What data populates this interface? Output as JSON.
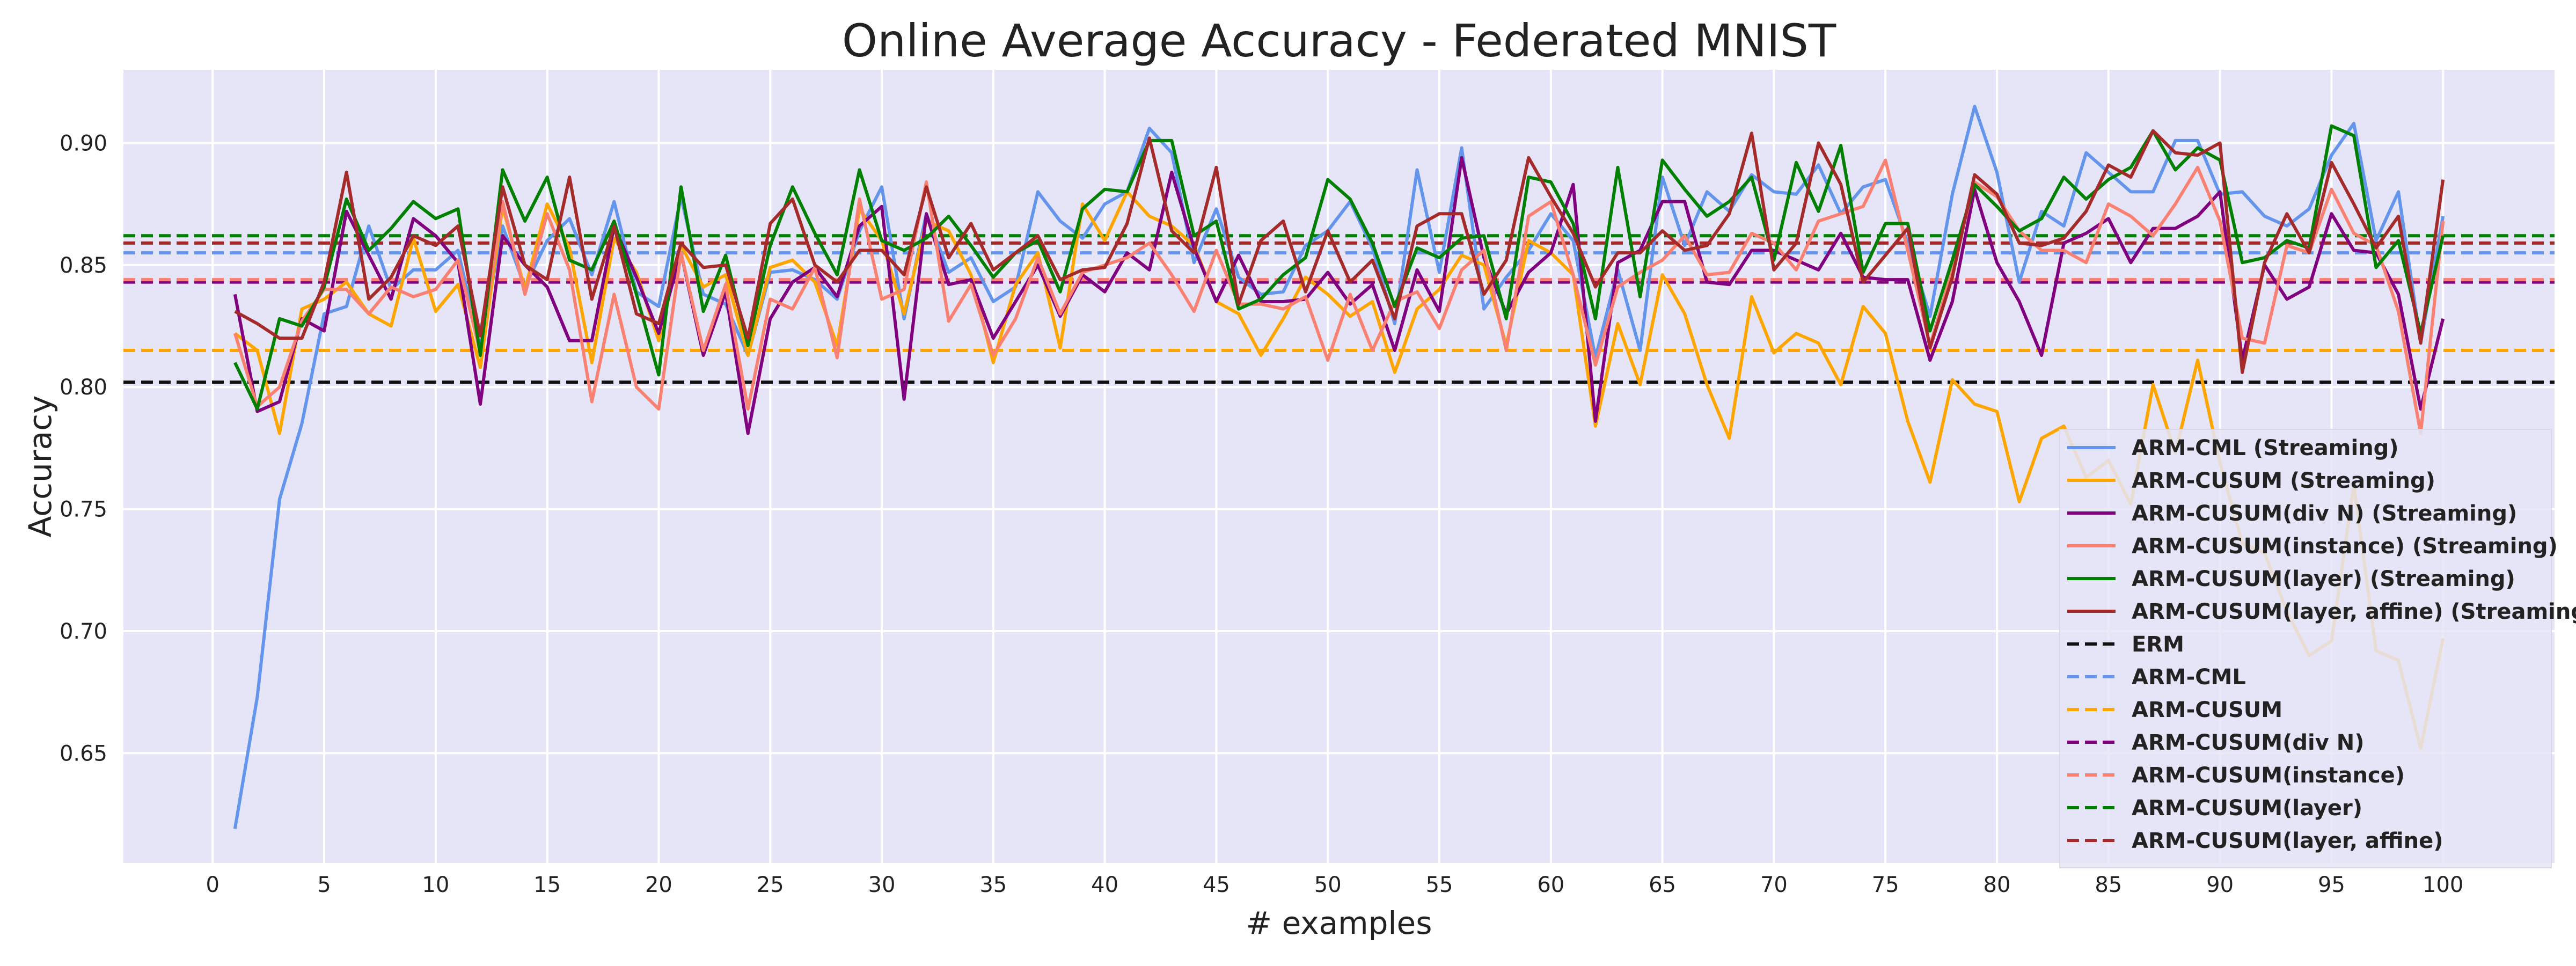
{
  "chart_data": {
    "type": "line",
    "title": "Online Average Accuracy - Federated MNIST",
    "xlabel": "# examples",
    "ylabel": "Accuracy",
    "xlim": [
      -4,
      105
    ],
    "ylim": [
      0.605,
      0.93
    ],
    "xticks": [
      0,
      5,
      10,
      15,
      20,
      25,
      30,
      35,
      40,
      45,
      50,
      55,
      60,
      65,
      70,
      75,
      80,
      85,
      90,
      95,
      100
    ],
    "yticks": [
      0.65,
      0.7,
      0.75,
      0.8,
      0.85,
      0.9
    ],
    "ytick_labels": [
      "0.65",
      "0.70",
      "0.75",
      "0.80",
      "0.85",
      "0.90"
    ],
    "grid": true,
    "plot_background": "#e5e5f7",
    "legend_position": "lower right",
    "x": [
      1,
      2,
      3,
      4,
      5,
      6,
      7,
      8,
      9,
      10,
      11,
      12,
      13,
      14,
      15,
      16,
      17,
      18,
      19,
      20,
      21,
      22,
      23,
      24,
      25,
      26,
      27,
      28,
      29,
      30,
      31,
      32,
      33,
      34,
      35,
      36,
      37,
      38,
      39,
      40,
      41,
      42,
      43,
      44,
      45,
      46,
      47,
      48,
      49,
      50,
      51,
      52,
      53,
      54,
      55,
      56,
      57,
      58,
      59,
      60,
      61,
      62,
      63,
      64,
      65,
      66,
      67,
      68,
      69,
      70,
      71,
      72,
      73,
      74,
      75,
      76,
      77,
      78,
      79,
      80,
      81,
      82,
      83,
      84,
      85,
      86,
      87,
      88,
      89,
      90,
      91,
      92,
      93,
      94,
      95,
      96,
      97,
      98,
      99,
      100
    ],
    "series": [
      {
        "name": "ARM-CML (Streaming)",
        "color": "#6495ED",
        "style": "solid",
        "values": [
          0.619,
          0.673,
          0.754,
          0.785,
          0.83,
          0.833,
          0.866,
          0.84,
          0.848,
          0.848,
          0.856,
          0.816,
          0.866,
          0.841,
          0.86,
          0.869,
          0.846,
          0.876,
          0.839,
          0.833,
          0.878,
          0.838,
          0.834,
          0.813,
          0.847,
          0.848,
          0.844,
          0.836,
          0.864,
          0.882,
          0.828,
          0.871,
          0.847,
          0.853,
          0.835,
          0.841,
          0.88,
          0.868,
          0.861,
          0.875,
          0.88,
          0.906,
          0.896,
          0.851,
          0.873,
          0.845,
          0.838,
          0.839,
          0.858,
          0.864,
          0.876,
          0.857,
          0.826,
          0.889,
          0.847,
          0.898,
          0.832,
          0.845,
          0.856,
          0.871,
          0.86,
          0.812,
          0.848,
          0.815,
          0.886,
          0.858,
          0.88,
          0.872,
          0.887,
          0.88,
          0.879,
          0.891,
          0.871,
          0.882,
          0.885,
          0.859,
          0.829,
          0.879,
          0.915,
          0.888,
          0.843,
          0.872,
          0.866,
          0.896,
          0.888,
          0.88,
          0.88,
          0.901,
          0.901,
          0.879,
          0.88,
          0.87,
          0.866,
          0.873,
          0.895,
          0.908,
          0.86,
          0.88,
          0.818,
          0.87
        ]
      },
      {
        "name": "ARM-CUSUM (Streaming)",
        "color": "#FFA500",
        "style": "solid",
        "values": [
          0.822,
          0.815,
          0.781,
          0.832,
          0.836,
          0.843,
          0.83,
          0.825,
          0.861,
          0.831,
          0.842,
          0.808,
          0.874,
          0.84,
          0.875,
          0.857,
          0.81,
          0.861,
          0.847,
          0.819,
          0.858,
          0.841,
          0.846,
          0.813,
          0.849,
          0.852,
          0.843,
          0.817,
          0.873,
          0.86,
          0.83,
          0.868,
          0.864,
          0.846,
          0.81,
          0.842,
          0.855,
          0.816,
          0.875,
          0.86,
          0.88,
          0.87,
          0.866,
          0.858,
          0.835,
          0.83,
          0.813,
          0.828,
          0.845,
          0.838,
          0.829,
          0.835,
          0.806,
          0.832,
          0.84,
          0.854,
          0.85,
          0.817,
          0.86,
          0.855,
          0.846,
          0.784,
          0.826,
          0.801,
          0.846,
          0.83,
          0.801,
          0.779,
          0.837,
          0.814,
          0.822,
          0.818,
          0.801,
          0.833,
          0.822,
          0.786,
          0.761,
          0.803,
          0.793,
          0.79,
          0.753,
          0.779,
          0.784,
          0.763,
          0.77,
          0.752,
          0.801,
          0.773,
          0.811,
          0.769,
          0.736,
          0.732,
          0.708,
          0.69,
          0.696,
          0.76,
          0.692,
          0.688,
          0.652,
          0.697
        ]
      },
      {
        "name": "ARM-CUSUM(div N) (Streaming)",
        "color": "#800080",
        "style": "solid",
        "values": [
          0.838,
          0.79,
          0.794,
          0.828,
          0.823,
          0.872,
          0.854,
          0.836,
          0.869,
          0.862,
          0.851,
          0.793,
          0.862,
          0.85,
          0.841,
          0.819,
          0.819,
          0.866,
          0.845,
          0.822,
          0.855,
          0.813,
          0.839,
          0.781,
          0.828,
          0.843,
          0.849,
          0.837,
          0.866,
          0.874,
          0.795,
          0.871,
          0.842,
          0.844,
          0.82,
          0.835,
          0.85,
          0.829,
          0.846,
          0.839,
          0.855,
          0.848,
          0.888,
          0.857,
          0.835,
          0.854,
          0.835,
          0.835,
          0.836,
          0.847,
          0.834,
          0.842,
          0.815,
          0.848,
          0.831,
          0.894,
          0.853,
          0.83,
          0.847,
          0.855,
          0.883,
          0.786,
          0.851,
          0.856,
          0.876,
          0.876,
          0.843,
          0.842,
          0.856,
          0.856,
          0.852,
          0.848,
          0.863,
          0.845,
          0.844,
          0.844,
          0.811,
          0.835,
          0.881,
          0.851,
          0.835,
          0.813,
          0.859,
          0.863,
          0.869,
          0.851,
          0.865,
          0.865,
          0.87,
          0.88,
          0.811,
          0.85,
          0.836,
          0.841,
          0.871,
          0.856,
          0.855,
          0.838,
          0.791,
          0.828
        ]
      },
      {
        "name": "ARM-CUSUM(instance) (Streaming)",
        "color": "#FA8072",
        "style": "solid",
        "values": [
          0.822,
          0.792,
          0.8,
          0.827,
          0.84,
          0.84,
          0.83,
          0.841,
          0.837,
          0.84,
          0.852,
          0.814,
          0.876,
          0.838,
          0.871,
          0.848,
          0.794,
          0.838,
          0.8,
          0.791,
          0.855,
          0.815,
          0.842,
          0.791,
          0.836,
          0.832,
          0.849,
          0.812,
          0.877,
          0.836,
          0.84,
          0.884,
          0.827,
          0.842,
          0.813,
          0.828,
          0.853,
          0.83,
          0.847,
          0.85,
          0.853,
          0.859,
          0.846,
          0.831,
          0.856,
          0.834,
          0.834,
          0.832,
          0.837,
          0.811,
          0.838,
          0.815,
          0.835,
          0.839,
          0.824,
          0.848,
          0.856,
          0.815,
          0.87,
          0.876,
          0.846,
          0.809,
          0.841,
          0.847,
          0.852,
          0.862,
          0.846,
          0.847,
          0.863,
          0.859,
          0.848,
          0.868,
          0.871,
          0.874,
          0.893,
          0.856,
          0.817,
          0.848,
          0.884,
          0.878,
          0.864,
          0.856,
          0.856,
          0.851,
          0.875,
          0.87,
          0.862,
          0.875,
          0.89,
          0.868,
          0.82,
          0.818,
          0.858,
          0.855,
          0.881,
          0.863,
          0.858,
          0.831,
          0.781,
          0.868
        ]
      },
      {
        "name": "ARM-CUSUM(layer) (Streaming)",
        "color": "#008000",
        "style": "solid",
        "values": [
          0.81,
          0.791,
          0.828,
          0.825,
          0.841,
          0.877,
          0.856,
          0.865,
          0.876,
          0.869,
          0.873,
          0.813,
          0.889,
          0.868,
          0.886,
          0.852,
          0.848,
          0.868,
          0.838,
          0.805,
          0.882,
          0.831,
          0.854,
          0.817,
          0.858,
          0.882,
          0.863,
          0.846,
          0.889,
          0.86,
          0.856,
          0.861,
          0.87,
          0.858,
          0.845,
          0.855,
          0.86,
          0.839,
          0.873,
          0.881,
          0.88,
          0.901,
          0.901,
          0.862,
          0.868,
          0.832,
          0.836,
          0.846,
          0.853,
          0.885,
          0.877,
          0.859,
          0.833,
          0.857,
          0.853,
          0.861,
          0.862,
          0.828,
          0.886,
          0.884,
          0.867,
          0.828,
          0.89,
          0.837,
          0.893,
          0.881,
          0.87,
          0.876,
          0.886,
          0.852,
          0.892,
          0.872,
          0.899,
          0.847,
          0.867,
          0.867,
          0.823,
          0.852,
          0.883,
          0.874,
          0.864,
          0.869,
          0.886,
          0.877,
          0.885,
          0.89,
          0.905,
          0.889,
          0.898,
          0.893,
          0.851,
          0.853,
          0.86,
          0.857,
          0.907,
          0.903,
          0.849,
          0.86,
          0.822,
          0.862
        ]
      },
      {
        "name": "ARM-CUSUM(layer, affine) (Streaming)",
        "color": "#A52A2A",
        "style": "solid",
        "values": [
          0.831,
          0.826,
          0.82,
          0.82,
          0.843,
          0.888,
          0.836,
          0.845,
          0.862,
          0.858,
          0.866,
          0.821,
          0.882,
          0.85,
          0.844,
          0.886,
          0.836,
          0.866,
          0.83,
          0.826,
          0.859,
          0.849,
          0.85,
          0.82,
          0.867,
          0.877,
          0.85,
          0.843,
          0.856,
          0.856,
          0.846,
          0.882,
          0.853,
          0.867,
          0.848,
          0.855,
          0.862,
          0.844,
          0.848,
          0.849,
          0.867,
          0.902,
          0.864,
          0.855,
          0.89,
          0.834,
          0.86,
          0.868,
          0.839,
          0.864,
          0.843,
          0.852,
          0.828,
          0.866,
          0.871,
          0.871,
          0.838,
          0.852,
          0.894,
          0.878,
          0.863,
          0.841,
          0.855,
          0.855,
          0.864,
          0.856,
          0.858,
          0.871,
          0.904,
          0.848,
          0.859,
          0.9,
          0.883,
          0.843,
          0.854,
          0.865,
          0.816,
          0.845,
          0.887,
          0.879,
          0.859,
          0.858,
          0.861,
          0.872,
          0.891,
          0.886,
          0.905,
          0.896,
          0.895,
          0.9,
          0.806,
          0.851,
          0.871,
          0.855,
          0.892,
          0.875,
          0.857,
          0.87,
          0.818,
          0.885
        ]
      }
    ],
    "baselines": [
      {
        "name": "ERM",
        "value": 0.802,
        "color": "#111111",
        "style": "dashed"
      },
      {
        "name": "ARM-CML",
        "value": 0.855,
        "color": "#6495ED",
        "style": "dashed"
      },
      {
        "name": "ARM-CUSUM",
        "value": 0.815,
        "color": "#FFA500",
        "style": "dashed"
      },
      {
        "name": "ARM-CUSUM(div N)",
        "value": 0.843,
        "color": "#800080",
        "style": "dashed"
      },
      {
        "name": "ARM-CUSUM(instance)",
        "value": 0.844,
        "color": "#FA8072",
        "style": "dashed"
      },
      {
        "name": "ARM-CUSUM(layer)",
        "value": 0.862,
        "color": "#008000",
        "style": "dashed"
      },
      {
        "name": "ARM-CUSUM(layer, affine)",
        "value": 0.859,
        "color": "#A52A2A",
        "style": "dashed"
      }
    ]
  }
}
